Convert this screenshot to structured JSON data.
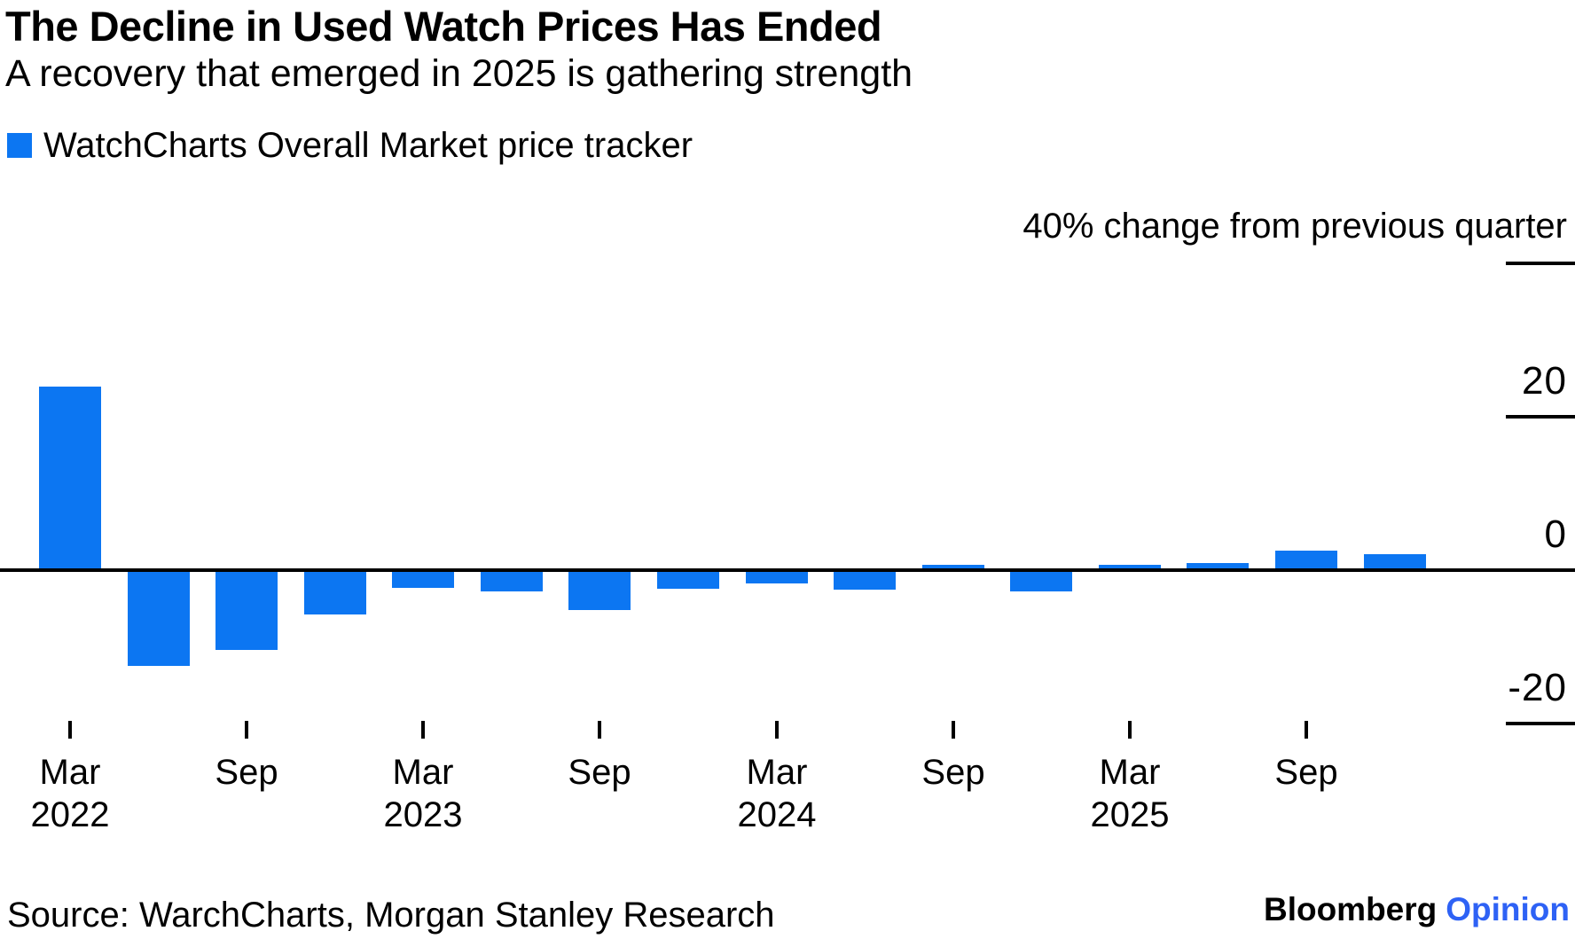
{
  "header": {
    "title": "The Decline in Used Watch Prices Has Ended",
    "subtitle": "A recovery that emerged in 2025 is gathering strength"
  },
  "legend": {
    "label": "WatchCharts Overall Market price tracker"
  },
  "colors": {
    "bar_blue": "#0c76f2",
    "axis_black": "#000000",
    "opinion_blue": "#2e62f5"
  },
  "chart_data": {
    "type": "bar",
    "title": "The Decline in Used Watch Prices Has Ended",
    "subtitle": "A recovery that emerged in 2025 is gathering strength",
    "series_name": "WatchCharts Overall Market price tracker",
    "ylabel": "% change from previous quarter",
    "y_axis_caption": "40% change from previous quarter",
    "grid": false,
    "legend_position": "top-left",
    "ylim": [
      -25,
      45
    ],
    "categories": [
      "Mar 2022",
      "Jun 2022",
      "Sep 2022",
      "Dec 2022",
      "Mar 2023",
      "Jun 2023",
      "Sep 2023",
      "Dec 2023",
      "Mar 2024",
      "Jun 2024",
      "Sep 2024",
      "Dec 2024",
      "Mar 2025",
      "Jun 2025",
      "Sep 2025",
      "Dec 2025"
    ],
    "values": [
      23.7,
      -12.3,
      -10.2,
      -5.6,
      -2.1,
      -2.5,
      -5.0,
      -2.2,
      -1.5,
      -2.3,
      0.5,
      -2.6,
      0.5,
      0.7,
      2.3,
      1.9
    ],
    "yticks": [
      {
        "label": "40% change from previous quarter",
        "value": 40,
        "dash": true,
        "is_caption": true
      },
      {
        "label": "20",
        "value": 20,
        "dash": true,
        "is_caption": false
      },
      {
        "label": "0",
        "value": 0,
        "dash": false,
        "is_caption": false
      },
      {
        "label": "-20",
        "value": -20,
        "dash": true,
        "is_caption": false
      }
    ],
    "xticks": [
      {
        "month": "Mar",
        "year": "2022",
        "bar_index": 0
      },
      {
        "month": "Sep",
        "year": "",
        "bar_index": 2
      },
      {
        "month": "Mar",
        "year": "2023",
        "bar_index": 4
      },
      {
        "month": "Sep",
        "year": "",
        "bar_index": 6
      },
      {
        "month": "Mar",
        "year": "2024",
        "bar_index": 8
      },
      {
        "month": "Sep",
        "year": "",
        "bar_index": 10
      },
      {
        "month": "Mar",
        "year": "2025",
        "bar_index": 12
      },
      {
        "month": "Sep",
        "year": "",
        "bar_index": 14
      }
    ]
  },
  "footer": {
    "source": "Source: WarchCharts, Morgan Stanley Research",
    "brand": {
      "bloomberg": "Bloomberg",
      "opinion": "Opinion"
    }
  }
}
